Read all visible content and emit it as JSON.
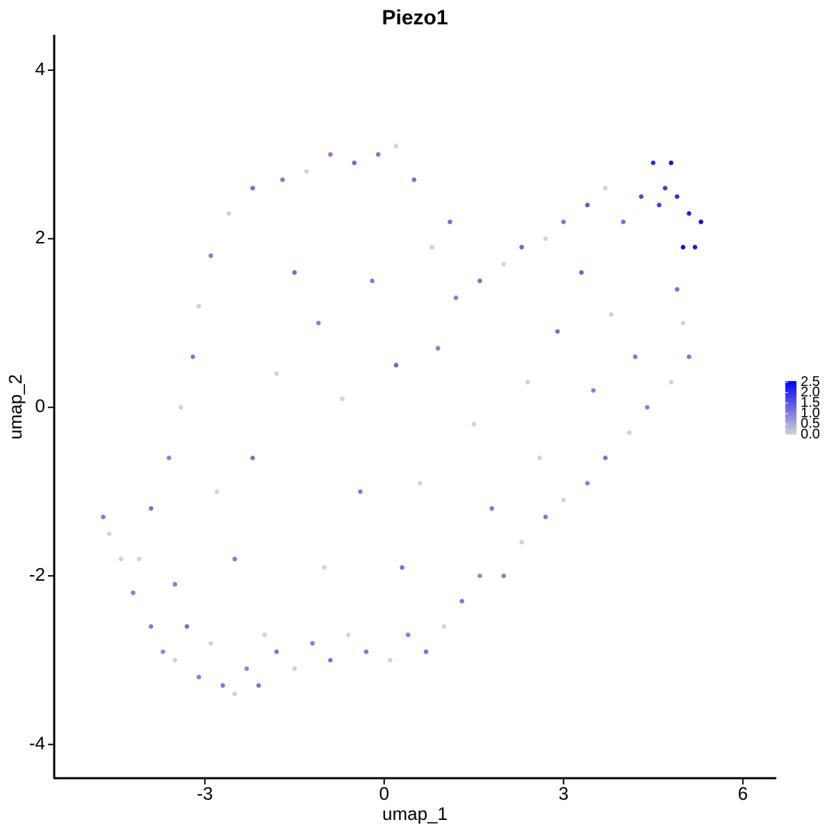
{
  "chart_data": {
    "type": "scatter",
    "title": "Piezo1",
    "x_label": "umap_1",
    "y_label": "umap_2",
    "x": [
      -4.7,
      -4.6,
      -4.4,
      -4.2,
      -3.9,
      -3.7,
      -3.5,
      -3.3,
      -3.1,
      -2.9,
      -2.7,
      -2.5,
      -2.3,
      -2.1,
      -2.0,
      -1.8,
      -1.5,
      -1.2,
      -0.9,
      -0.6,
      -0.3,
      0.1,
      0.4,
      0.7,
      1.0,
      1.3,
      1.6,
      2.0,
      2.3,
      2.7,
      3.0,
      3.4,
      3.7,
      4.1,
      4.4,
      4.8,
      5.1,
      5.0,
      4.9,
      5.2,
      5.3,
      5.1,
      4.9,
      4.7,
      4.5,
      4.8,
      5.0,
      4.6,
      4.3,
      4.0,
      3.7,
      3.4,
      3.0,
      2.7,
      2.3,
      2.0,
      1.6,
      1.2,
      0.8,
      0.5,
      0.2,
      -0.1,
      -0.5,
      -0.9,
      -1.3,
      -1.7,
      -2.2,
      -2.6,
      -2.9,
      -3.1,
      -3.2,
      -3.4,
      -3.6,
      -3.9,
      -4.1,
      -2.5,
      -2.2,
      -1.8,
      -1.5,
      -1.1,
      -0.7,
      -0.4,
      -1.0,
      0.3,
      0.6,
      0.2,
      -0.2,
      0.9,
      1.5,
      1.8,
      2.4,
      2.9,
      3.3,
      3.8,
      4.2,
      3.5,
      2.6,
      1.1,
      -2.8,
      -3.5
    ],
    "y": [
      -1.3,
      -1.5,
      -1.8,
      -2.2,
      -2.6,
      -2.9,
      -3.0,
      -2.6,
      -3.2,
      -2.8,
      -3.3,
      -3.4,
      -3.1,
      -3.3,
      -2.7,
      -2.9,
      -3.1,
      -2.8,
      -3.0,
      -2.7,
      -2.9,
      -3.0,
      -2.7,
      -2.9,
      -2.6,
      -2.3,
      -2.0,
      -2.0,
      -1.6,
      -1.3,
      -1.1,
      -0.9,
      -0.6,
      -0.3,
      0.0,
      0.3,
      0.6,
      1.0,
      1.4,
      1.9,
      2.2,
      2.3,
      2.5,
      2.6,
      2.9,
      2.9,
      1.9,
      2.4,
      2.5,
      2.2,
      2.6,
      2.4,
      2.2,
      2.0,
      1.9,
      1.7,
      1.5,
      1.3,
      1.9,
      2.7,
      3.1,
      3.0,
      2.9,
      3.0,
      2.8,
      2.7,
      2.6,
      2.3,
      1.8,
      1.2,
      0.6,
      0.0,
      -0.6,
      -1.2,
      -1.8,
      -1.8,
      -0.6,
      0.4,
      1.6,
      1.0,
      0.1,
      -1.0,
      -1.9,
      -1.9,
      -0.9,
      0.5,
      1.5,
      0.7,
      -0.2,
      -1.2,
      0.3,
      0.9,
      1.6,
      1.1,
      0.6,
      0.2,
      -0.6,
      2.2,
      -1.0,
      -2.1
    ],
    "values": [
      1.1,
      0,
      0,
      1.0,
      1.1,
      0.9,
      0,
      1.2,
      1.0,
      0,
      1.1,
      0,
      0.9,
      1.2,
      0,
      1.1,
      0,
      1.0,
      1.2,
      0,
      1.1,
      0,
      1.0,
      1.2,
      0,
      1.1,
      0.9,
      1.0,
      0,
      1.1,
      0,
      1.0,
      1.2,
      0,
      1.0,
      0,
      1.1,
      0,
      1.2,
      2.3,
      2.4,
      2.2,
      2.0,
      1.9,
      2.1,
      2.4,
      2.5,
      1.8,
      1.7,
      1.2,
      0,
      1.5,
      1.1,
      0,
      1.3,
      0,
      1.2,
      1.0,
      0,
      1.2,
      0,
      1.1,
      1.3,
      1.0,
      0,
      1.1,
      1.2,
      0,
      1.0,
      0,
      1.1,
      0,
      1.0,
      1.2,
      0,
      1.1,
      1.2,
      0,
      1.3,
      1.0,
      0,
      1.1,
      0,
      1.2,
      0,
      1.3,
      1.1,
      1.0,
      0,
      1.1,
      0,
      1.2,
      1.4,
      0,
      1.1,
      1.0,
      0,
      1.2,
      0,
      1.0
    ],
    "xlim": [
      -5.52,
      6.56
    ],
    "ylim": [
      -4.4,
      4.42
    ],
    "xticks": [
      -3,
      0,
      3,
      6
    ],
    "yticks": [
      -4,
      -2,
      0,
      2,
      4
    ],
    "color_low": "#d3d3d3",
    "color_high": "#0000ff",
    "colorlim": [
      0,
      2.55
    ],
    "colorbar_ticks": [
      {
        "value": 0,
        "label": "0.0"
      },
      0.5,
      {
        "value": 1,
        "label": "1.0"
      },
      1.5,
      {
        "value": 2,
        "label": "2.0"
      },
      2.5
    ]
  }
}
